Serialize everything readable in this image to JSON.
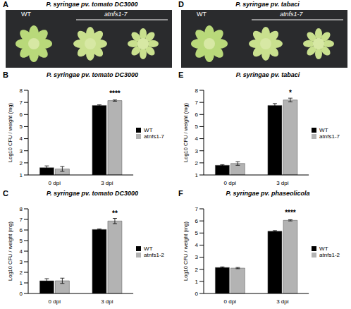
{
  "photos": [
    {
      "letter": "A",
      "title": "P. syringae pv. tomato DC3000",
      "labels": [
        "WT",
        "atnfs1-7"
      ]
    },
    {
      "letter": "D",
      "title": "P. syringae pv. tabaci",
      "labels": [
        "WT",
        "atnfs1-7"
      ]
    }
  ],
  "chart_data": [
    {
      "letter": "B",
      "type": "bar",
      "title": "P. syringae pv. tomato DC3000",
      "y_label": "Log10 CFU / weight (mg)",
      "categories": [
        "0 dpi",
        "3 dpi"
      ],
      "series": [
        {
          "name": "WT",
          "color": "#000000",
          "values": [
            1.6,
            6.75
          ],
          "errors": [
            0.15,
            0.05
          ]
        },
        {
          "name": "atnfs1-7",
          "color": "#b3b3b3",
          "values": [
            1.5,
            7.15
          ],
          "errors": [
            0.2,
            0.05
          ]
        }
      ],
      "annotation": {
        "category": "3 dpi",
        "series": "atnfs1-7",
        "text": "****"
      },
      "ylim": [
        1,
        8
      ],
      "yticks": [
        1,
        2,
        3,
        4,
        5,
        6,
        7,
        8
      ],
      "legend": "right"
    },
    {
      "letter": "C",
      "type": "bar",
      "title": "P. syringae pv. tomato DC3000",
      "y_label": "Log10 CFU / weight (mg)",
      "categories": [
        "0 dpi",
        "3 dpi"
      ],
      "series": [
        {
          "name": "WT",
          "color": "#000000",
          "values": [
            1.2,
            6.05
          ],
          "errors": [
            0.2,
            0.05
          ]
        },
        {
          "name": "atnfs1-2",
          "color": "#b3b3b3",
          "values": [
            1.2,
            6.85
          ],
          "errors": [
            0.25,
            0.25
          ]
        }
      ],
      "annotation": {
        "category": "3 dpi",
        "series": "atnfs1-2",
        "text": "**"
      },
      "ylim": [
        0,
        8
      ],
      "yticks": [
        0,
        1,
        2,
        3,
        4,
        5,
        6,
        7,
        8
      ],
      "legend": "right"
    },
    {
      "letter": "E",
      "type": "bar",
      "title": "P. syringae pv. tabaci",
      "y_label": "Log10 CFU / weight (mg)",
      "categories": [
        "0 dpi",
        "3 dpi"
      ],
      "series": [
        {
          "name": "WT",
          "color": "#000000",
          "values": [
            1.8,
            6.75
          ],
          "errors": [
            0.05,
            0.15
          ]
        },
        {
          "name": "atnfs1-7",
          "color": "#b3b3b3",
          "values": [
            1.95,
            7.2
          ],
          "errors": [
            0.15,
            0.15
          ]
        }
      ],
      "annotation": {
        "category": "3 dpi",
        "series": "atnfs1-7",
        "text": "*"
      },
      "ylim": [
        1,
        8
      ],
      "yticks": [
        1,
        2,
        3,
        4,
        5,
        6,
        7,
        8
      ],
      "legend": "right"
    },
    {
      "letter": "F",
      "type": "bar",
      "title": "P. syringae pv. phaseolicola",
      "y_label": "Log10 CFU / weight (mg)",
      "categories": [
        "0 dpi",
        "3 dpi"
      ],
      "series": [
        {
          "name": "WT",
          "color": "#000000",
          "values": [
            2.15,
            5.15
          ],
          "errors": [
            0.05,
            0.05
          ]
        },
        {
          "name": "atnfs1-2",
          "color": "#b3b3b3",
          "values": [
            2.1,
            6.05
          ],
          "errors": [
            0.05,
            0.05
          ]
        }
      ],
      "annotation": {
        "category": "3 dpi",
        "series": "atnfs1-2",
        "text": "****"
      },
      "ylim": [
        0,
        7
      ],
      "yticks": [
        0,
        1,
        2,
        3,
        4,
        5,
        6,
        7
      ],
      "legend": "right"
    }
  ]
}
